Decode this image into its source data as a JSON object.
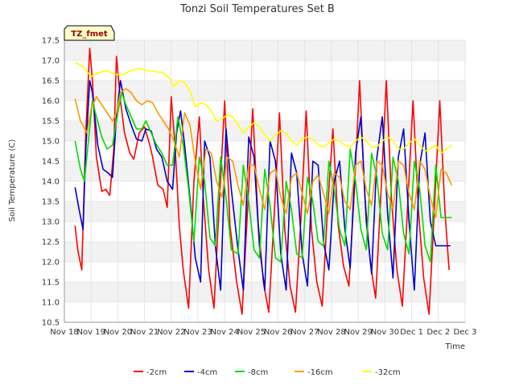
{
  "chart_data": {
    "type": "line",
    "title": "Tonzi Soil Temperatures Set B",
    "xlabel": "Time",
    "ylabel": "Soil Temperature (C)",
    "tag_label": "TZ_fmet",
    "xlim": [
      0,
      15
    ],
    "ylim": [
      10.5,
      17.5
    ],
    "x_tick_labels": [
      "Nov 18",
      "Nov 19",
      "Nov 20",
      "Nov 21",
      "Nov 22",
      "Nov 23",
      "Nov 24",
      "Nov 25",
      "Nov 26",
      "Nov 27",
      "Nov 28",
      "Nov 29",
      "Nov 30",
      "Dec 1",
      "Dec 2",
      "Dec 3"
    ],
    "y_ticks": [
      10.5,
      11.0,
      11.5,
      12.0,
      12.5,
      13.0,
      13.5,
      14.0,
      14.5,
      15.0,
      15.5,
      16.0,
      16.5,
      17.0,
      17.5
    ],
    "y_tick_labels": [
      "10.5",
      "11.0",
      "11.5",
      "12.0",
      "12.5",
      "13.0",
      "13.5",
      "14.0",
      "14.5",
      "15.0",
      "15.5",
      "16.0",
      "16.5",
      "17.0",
      "17.5"
    ],
    "grid": true,
    "legend_position": "bottom",
    "series": [
      {
        "name": "-2cm",
        "color": "#ff0000",
        "x": [
          0.4,
          0.5,
          0.65,
          0.8,
          0.95,
          1.05,
          1.2,
          1.4,
          1.55,
          1.7,
          1.85,
          1.95,
          2.1,
          2.25,
          2.45,
          2.6,
          2.8,
          3.0,
          3.2,
          3.3,
          3.5,
          3.7,
          3.85,
          4.0,
          4.15,
          4.3,
          4.45,
          4.65,
          4.85,
          5.05,
          5.2,
          5.4,
          5.6,
          5.8,
          6.0,
          6.2,
          6.45,
          6.65,
          6.85,
          7.05,
          7.25,
          7.45,
          7.65,
          7.85,
          8.05,
          8.25,
          8.45,
          8.65,
          8.85,
          9.05,
          9.25,
          9.45,
          9.65,
          9.85,
          10.05,
          10.25,
          10.45,
          10.65,
          10.85,
          11.05,
          11.25,
          11.45,
          11.65,
          11.85,
          12.05,
          12.25,
          12.45,
          12.65,
          12.85,
          13.05,
          13.25,
          13.45,
          13.65,
          13.85,
          14.05,
          14.25,
          14.4
        ],
        "y": [
          12.9,
          12.3,
          11.8,
          15.2,
          17.3,
          16.5,
          14.6,
          13.75,
          13.8,
          13.65,
          14.8,
          17.1,
          16.0,
          15.2,
          14.7,
          14.55,
          15.2,
          15.35,
          14.9,
          14.6,
          13.9,
          13.8,
          13.35,
          16.1,
          14.8,
          12.9,
          11.8,
          10.85,
          14.0,
          15.6,
          13.6,
          11.8,
          10.85,
          13.5,
          16.0,
          12.9,
          11.5,
          10.7,
          13.2,
          15.8,
          13.0,
          11.5,
          10.75,
          13.1,
          15.7,
          12.8,
          11.4,
          10.75,
          13.0,
          15.75,
          12.8,
          11.5,
          10.9,
          13.3,
          15.3,
          12.9,
          11.9,
          11.4,
          13.7,
          16.5,
          13.6,
          12.0,
          11.1,
          13.7,
          16.5,
          13.5,
          11.8,
          10.9,
          13.4,
          16.0,
          13.3,
          11.6,
          10.7,
          13.3,
          16.0,
          13.2,
          11.8
        ],
        "label": "-2cm"
      },
      {
        "name": "-4cm",
        "color": "#0000cc",
        "x": [
          0.4,
          0.55,
          0.7,
          0.8,
          0.95,
          1.05,
          1.25,
          1.45,
          1.65,
          1.8,
          1.95,
          2.1,
          2.3,
          2.5,
          2.7,
          2.9,
          3.05,
          3.25,
          3.45,
          3.65,
          3.85,
          4.05,
          4.2,
          4.35,
          4.5,
          4.7,
          4.9,
          5.1,
          5.25,
          5.45,
          5.65,
          5.85,
          6.05,
          6.25,
          6.5,
          6.7,
          6.9,
          7.1,
          7.3,
          7.5,
          7.7,
          7.9,
          8.1,
          8.3,
          8.5,
          8.7,
          8.9,
          9.1,
          9.3,
          9.5,
          9.7,
          9.9,
          10.1,
          10.3,
          10.5,
          10.7,
          10.9,
          11.1,
          11.3,
          11.5,
          11.7,
          11.9,
          12.1,
          12.3,
          12.5,
          12.7,
          12.9,
          13.1,
          13.3,
          13.5,
          13.7,
          13.9,
          14.1,
          14.3,
          14.45
        ],
        "y": [
          13.85,
          13.3,
          12.8,
          14.8,
          16.5,
          16.2,
          14.9,
          14.3,
          14.2,
          14.1,
          15.6,
          16.5,
          15.8,
          15.4,
          15.05,
          15.0,
          15.3,
          15.25,
          14.8,
          14.6,
          14.0,
          13.8,
          15.2,
          15.75,
          14.9,
          13.6,
          12.1,
          11.5,
          15.0,
          14.6,
          12.4,
          11.3,
          15.3,
          13.8,
          12.3,
          11.3,
          15.1,
          14.6,
          12.4,
          11.3,
          15.0,
          14.5,
          12.2,
          11.3,
          14.7,
          14.2,
          12.2,
          11.4,
          14.5,
          14.4,
          12.5,
          11.8,
          14.0,
          14.5,
          12.8,
          11.85,
          14.7,
          15.6,
          13.0,
          11.7,
          14.6,
          15.6,
          13.2,
          11.6,
          14.6,
          15.3,
          13.0,
          11.3,
          14.4,
          15.2,
          13.0,
          12.4,
          12.4,
          12.4,
          12.4
        ],
        "label": "-4cm"
      },
      {
        "name": "-8cm",
        "color": "#00dd00",
        "x": [
          0.4,
          0.6,
          0.75,
          0.9,
          1.05,
          1.2,
          1.4,
          1.6,
          1.8,
          2.0,
          2.15,
          2.3,
          2.5,
          2.7,
          2.9,
          3.05,
          3.25,
          3.45,
          3.65,
          3.85,
          4.05,
          4.25,
          4.45,
          4.65,
          4.85,
          5.05,
          5.25,
          5.45,
          5.65,
          5.85,
          6.05,
          6.25,
          6.5,
          6.7,
          6.9,
          7.1,
          7.3,
          7.5,
          7.7,
          7.9,
          8.1,
          8.3,
          8.5,
          8.7,
          8.9,
          9.1,
          9.3,
          9.5,
          9.7,
          9.9,
          10.1,
          10.3,
          10.5,
          10.7,
          10.9,
          11.1,
          11.3,
          11.5,
          11.7,
          11.9,
          12.1,
          12.3,
          12.5,
          12.7,
          12.9,
          13.1,
          13.3,
          13.5,
          13.7,
          13.9,
          14.1,
          14.3,
          14.5
        ],
        "y": [
          15.0,
          14.3,
          14.0,
          15.0,
          16.0,
          15.6,
          15.1,
          14.8,
          14.9,
          15.7,
          16.2,
          15.9,
          15.6,
          15.3,
          15.3,
          15.5,
          15.2,
          14.9,
          14.7,
          14.4,
          14.4,
          15.6,
          14.9,
          13.8,
          12.5,
          14.6,
          14.0,
          12.6,
          12.4,
          14.6,
          13.6,
          12.3,
          12.2,
          14.4,
          13.5,
          12.3,
          12.1,
          14.3,
          13.4,
          12.1,
          12.0,
          14.0,
          13.3,
          12.2,
          12.1,
          14.1,
          13.5,
          12.5,
          12.4,
          14.5,
          13.8,
          12.8,
          12.4,
          14.8,
          14.0,
          12.8,
          12.3,
          14.7,
          14.1,
          12.7,
          12.3,
          14.6,
          14.0,
          12.7,
          12.2,
          14.5,
          13.8,
          12.4,
          12.0,
          14.4,
          13.1,
          13.1,
          13.1
        ],
        "label": "-8cm"
      },
      {
        "name": "-16cm",
        "color": "#ff9900",
        "x": [
          0.4,
          0.6,
          0.85,
          1.0,
          1.2,
          1.4,
          1.6,
          1.8,
          1.95,
          2.1,
          2.3,
          2.5,
          2.7,
          2.9,
          3.1,
          3.3,
          3.5,
          3.7,
          3.9,
          4.1,
          4.3,
          4.5,
          4.7,
          4.9,
          5.1,
          5.3,
          5.5,
          5.7,
          5.9,
          6.1,
          6.3,
          6.5,
          6.7,
          6.9,
          7.1,
          7.3,
          7.5,
          7.7,
          7.9,
          8.1,
          8.3,
          8.5,
          8.7,
          8.9,
          9.1,
          9.3,
          9.5,
          9.7,
          9.9,
          10.1,
          10.3,
          10.5,
          10.7,
          10.9,
          11.1,
          11.3,
          11.5,
          11.7,
          11.9,
          12.1,
          12.3,
          12.5,
          12.7,
          12.9,
          13.1,
          13.3,
          13.5,
          13.7,
          13.9,
          14.1,
          14.3,
          14.5
        ],
        "y": [
          16.05,
          15.5,
          15.2,
          15.8,
          16.1,
          15.9,
          15.7,
          15.5,
          15.7,
          16.2,
          16.3,
          16.2,
          16.0,
          15.9,
          16.0,
          15.95,
          15.7,
          15.5,
          15.3,
          15.0,
          14.6,
          15.7,
          15.4,
          14.5,
          13.8,
          14.8,
          14.7,
          14.0,
          13.6,
          14.6,
          14.5,
          13.9,
          13.4,
          14.4,
          14.4,
          13.8,
          13.3,
          14.2,
          14.3,
          13.6,
          13.2,
          14.1,
          14.2,
          13.7,
          13.2,
          14.0,
          14.15,
          13.7,
          13.2,
          14.2,
          14.1,
          13.5,
          13.3,
          14.4,
          14.5,
          13.8,
          13.4,
          14.5,
          14.4,
          13.7,
          13.3,
          14.5,
          14.4,
          13.7,
          13.3,
          14.5,
          14.3,
          13.6,
          13.1,
          14.3,
          14.2,
          13.9
        ],
        "label": "-16cm"
      },
      {
        "name": "-32cm",
        "color": "#ffff00",
        "x": [
          0.4,
          0.7,
          1.0,
          1.3,
          1.6,
          1.9,
          2.2,
          2.5,
          2.8,
          3.1,
          3.4,
          3.7,
          3.95,
          4.1,
          4.3,
          4.5,
          4.7,
          4.9,
          5.1,
          5.3,
          5.5,
          5.7,
          5.9,
          6.1,
          6.3,
          6.5,
          6.7,
          6.9,
          7.1,
          7.3,
          7.5,
          7.7,
          7.9,
          8.1,
          8.3,
          8.5,
          8.7,
          8.9,
          9.1,
          9.3,
          9.5,
          9.7,
          9.9,
          10.1,
          10.3,
          10.5,
          10.7,
          10.9,
          11.1,
          11.3,
          11.5,
          11.7,
          11.9,
          12.1,
          12.3,
          12.5,
          12.7,
          12.9,
          13.1,
          13.3,
          13.5,
          13.7,
          13.9,
          14.1,
          14.3,
          14.5
        ],
        "y": [
          16.95,
          16.85,
          16.6,
          16.7,
          16.75,
          16.65,
          16.65,
          16.75,
          16.8,
          16.75,
          16.72,
          16.7,
          16.55,
          16.35,
          16.5,
          16.45,
          16.25,
          15.85,
          15.95,
          15.9,
          15.75,
          15.5,
          15.55,
          15.65,
          15.6,
          15.4,
          15.2,
          15.35,
          15.45,
          15.35,
          15.15,
          15.0,
          15.15,
          15.25,
          15.2,
          15.0,
          14.9,
          15.05,
          15.1,
          15.05,
          14.9,
          14.85,
          14.95,
          15.05,
          15.0,
          14.9,
          14.85,
          15.0,
          15.1,
          15.0,
          14.85,
          14.85,
          15.0,
          15.1,
          15.0,
          14.8,
          14.8,
          14.95,
          15.05,
          14.9,
          14.75,
          14.8,
          14.9,
          14.7,
          14.8,
          14.9
        ],
        "label": "-32cm"
      }
    ]
  }
}
